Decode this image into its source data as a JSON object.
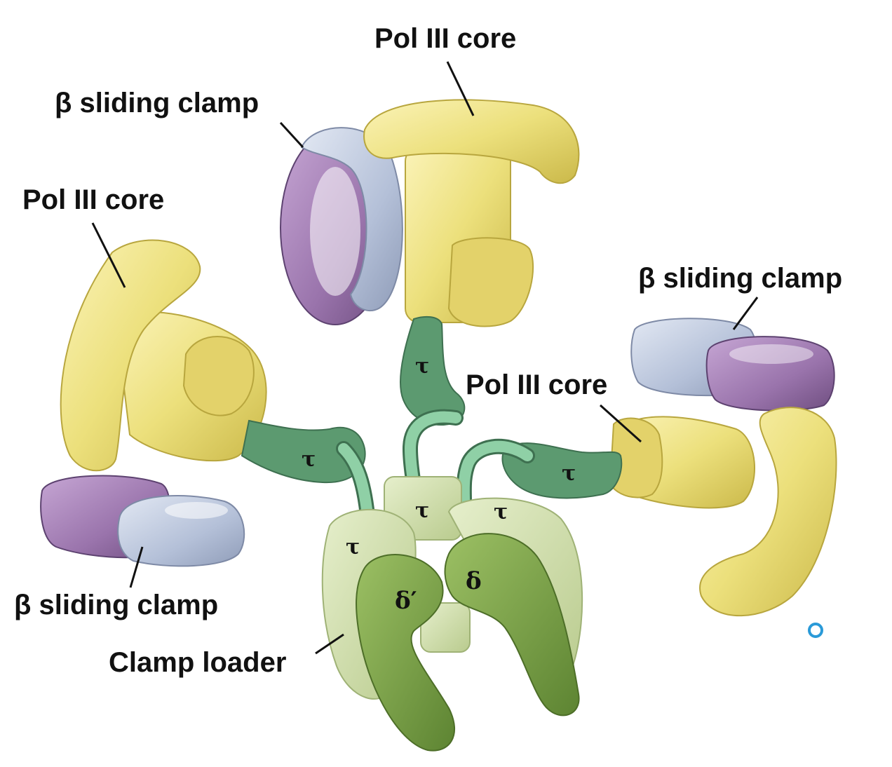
{
  "labels": {
    "pol_core_top": "Pol III core",
    "pol_core_left": "Pol III core",
    "pol_core_right": "Pol III core",
    "clamp_top": "β sliding clamp",
    "clamp_right": "β sliding clamp",
    "clamp_bottom_left": "β sliding clamp",
    "clamp_loader": "Clamp loader"
  },
  "subunits": {
    "tau": "τ",
    "delta": "δ",
    "delta_prime": "δ′"
  },
  "colors": {
    "pol_core": "#ece07c",
    "pol_core_shadow": "#cfc04e",
    "clamp_blue": "#b4c0d8",
    "clamp_purple": "#9a74ac",
    "tau_linker": "#5c9a70",
    "tau_tube": "#8fd0a6",
    "loader_light": "#d6e3b4",
    "loader_dark": "#7ca04a",
    "marker": "#2a9ad8"
  }
}
